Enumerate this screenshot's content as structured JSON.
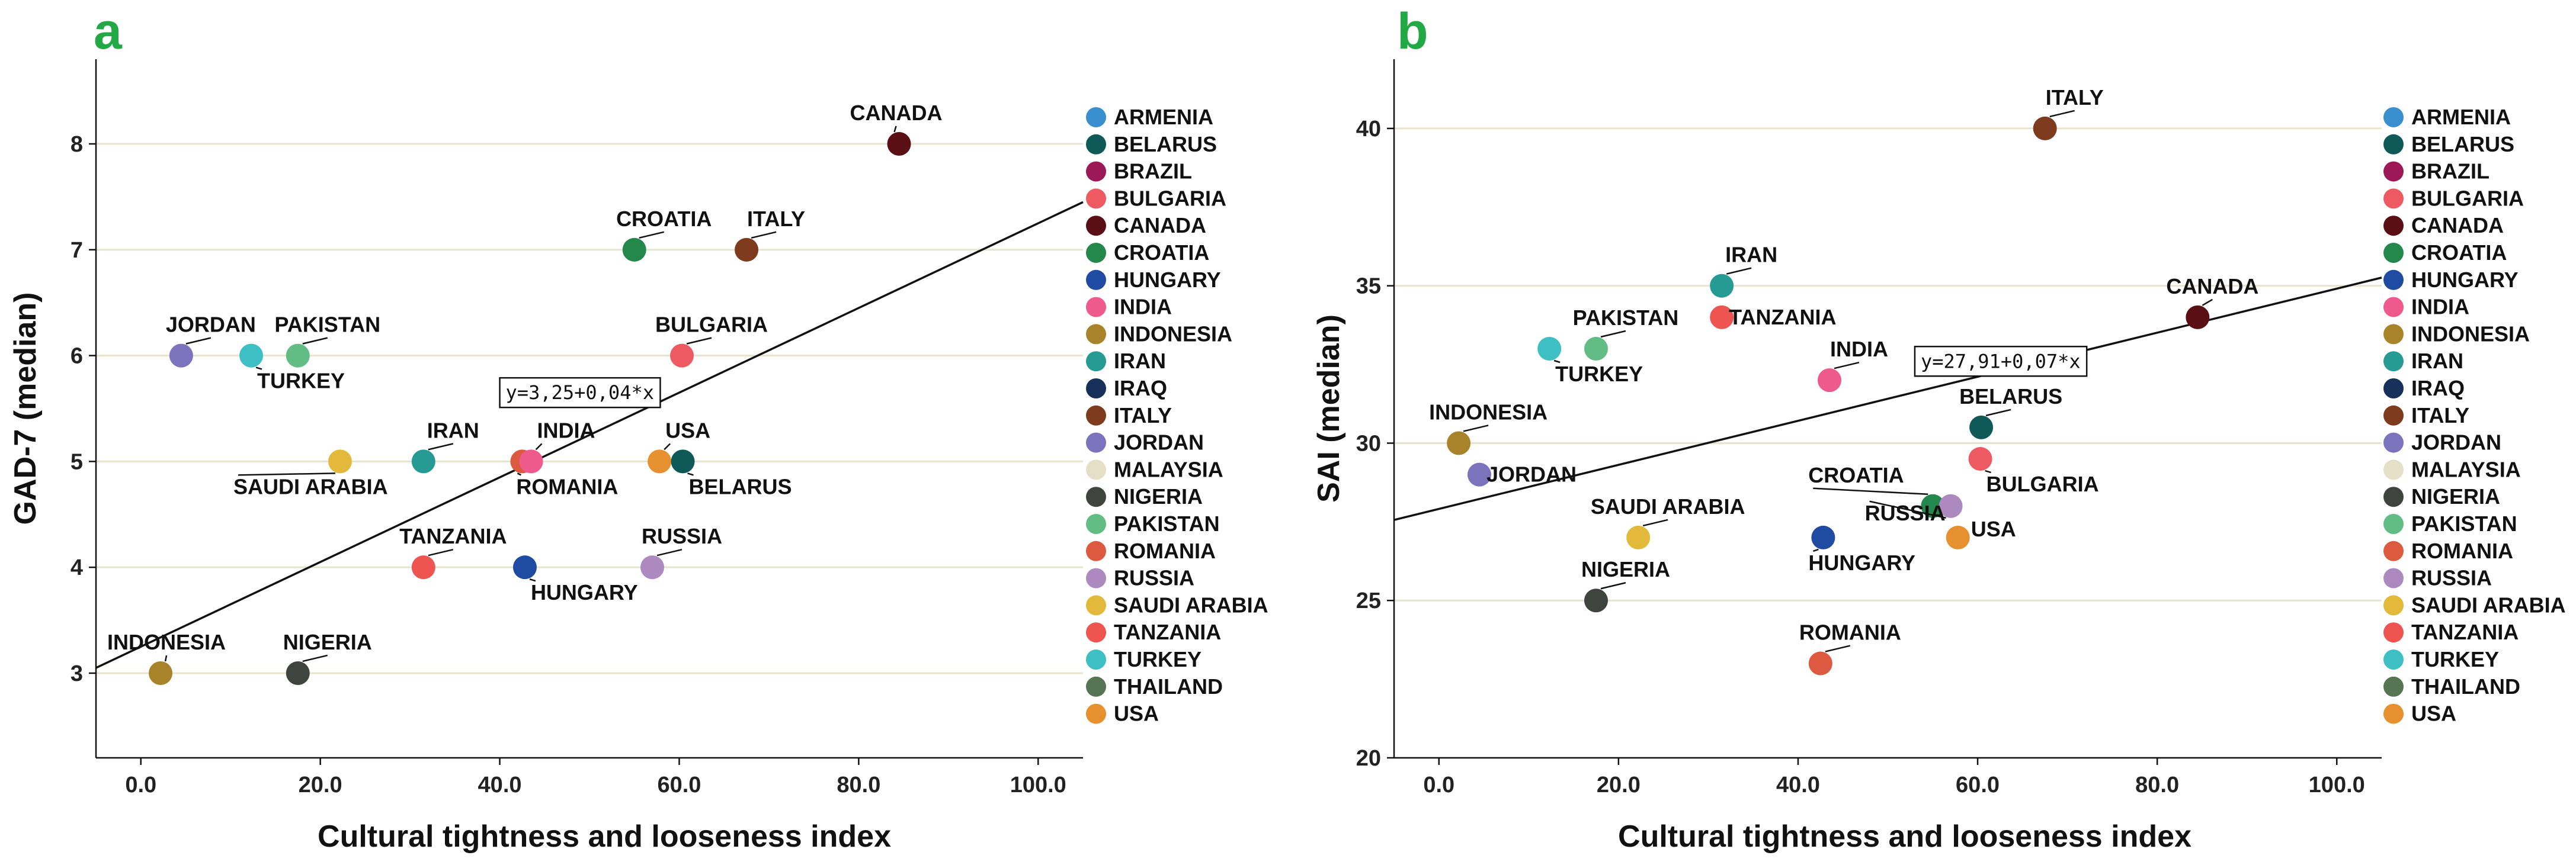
{
  "chart_data": [
    {
      "type": "scatter",
      "panel": "a",
      "xlabel": "Cultural tightness and looseness index",
      "ylabel": "GAD-7 (median)",
      "xlim": [
        -5,
        105
      ],
      "ylim": [
        2.2,
        8.8
      ],
      "xticks": [
        0,
        20,
        40,
        60,
        80,
        100
      ],
      "xtick_labels": [
        "0.0",
        "20.0",
        "40.0",
        "60.0",
        "80.0",
        "100.0"
      ],
      "yticks": [
        3,
        4,
        5,
        6,
        7,
        8
      ],
      "ytick_labels": [
        "3",
        "4",
        "5",
        "6",
        "7",
        "8"
      ],
      "gridlines": "horizontal",
      "fit": {
        "intercept": 3.25,
        "slope": 0.04,
        "label": "y=3,25+0,04*x",
        "label_at": [
          40,
          5.65
        ]
      },
      "points": [
        {
          "country": "CANADA",
          "x": 84.5,
          "y": 8
        },
        {
          "country": "CROATIA",
          "x": 55,
          "y": 7
        },
        {
          "country": "ITALY",
          "x": 67.5,
          "y": 7
        },
        {
          "country": "JORDAN",
          "x": 4.5,
          "y": 6
        },
        {
          "country": "TURKEY",
          "x": 12.3,
          "y": 6
        },
        {
          "country": "PAKISTAN",
          "x": 17.5,
          "y": 6
        },
        {
          "country": "BULGARIA",
          "x": 60.3,
          "y": 6
        },
        {
          "country": "SAUDI ARABIA",
          "x": 22.2,
          "y": 5
        },
        {
          "country": "IRAN",
          "x": 31.5,
          "y": 5
        },
        {
          "country": "ROMANIA",
          "x": 42.5,
          "y": 5
        },
        {
          "country": "INDIA",
          "x": 43.5,
          "y": 5
        },
        {
          "country": "USA",
          "x": 57.8,
          "y": 5
        },
        {
          "country": "BELARUS",
          "x": 60.4,
          "y": 5
        },
        {
          "country": "TANZANIA",
          "x": 31.5,
          "y": 4
        },
        {
          "country": "HUNGARY",
          "x": 42.8,
          "y": 4
        },
        {
          "country": "RUSSIA",
          "x": 57,
          "y": 4
        },
        {
          "country": "INDONESIA",
          "x": 2.2,
          "y": 3
        },
        {
          "country": "NIGERIA",
          "x": 17.5,
          "y": 3
        }
      ]
    },
    {
      "type": "scatter",
      "panel": "b",
      "xlabel": "Cultural tightness and looseness index",
      "ylabel": "SAI (median)",
      "xlim": [
        -5,
        105
      ],
      "ylim": [
        20,
        42.2
      ],
      "xticks": [
        0,
        20,
        40,
        60,
        80,
        100
      ],
      "xtick_labels": [
        "0.0",
        "20.0",
        "40.0",
        "60.0",
        "80.0",
        "100.0"
      ],
      "yticks": [
        20,
        25,
        30,
        35,
        40
      ],
      "ytick_labels": [
        "20",
        "25",
        "30",
        "35",
        "40"
      ],
      "gridlines": "horizontal",
      "fit": {
        "intercept": 27.91,
        "slope": 0.07,
        "label": "y=27,91+0,07*x",
        "label_at": [
          53,
          32.6
        ]
      },
      "points": [
        {
          "country": "ITALY",
          "x": 67.5,
          "y": 40
        },
        {
          "country": "IRAN",
          "x": 31.5,
          "y": 35
        },
        {
          "country": "TANZANIA",
          "x": 31.5,
          "y": 34
        },
        {
          "country": "CANADA",
          "x": 84.5,
          "y": 34
        },
        {
          "country": "TURKEY",
          "x": 12.3,
          "y": 33
        },
        {
          "country": "PAKISTAN",
          "x": 17.5,
          "y": 33
        },
        {
          "country": "INDIA",
          "x": 43.5,
          "y": 32
        },
        {
          "country": "INDONESIA",
          "x": 2.2,
          "y": 30
        },
        {
          "country": "JORDAN",
          "x": 4.5,
          "y": 29
        },
        {
          "country": "BELARUS",
          "x": 60.4,
          "y": 30.5
        },
        {
          "country": "BULGARIA",
          "x": 60.3,
          "y": 29.5
        },
        {
          "country": "CROATIA",
          "x": 55,
          "y": 28
        },
        {
          "country": "RUSSIA",
          "x": 57,
          "y": 28
        },
        {
          "country": "USA",
          "x": 57.8,
          "y": 27
        },
        {
          "country": "SAUDI ARABIA",
          "x": 22.2,
          "y": 27
        },
        {
          "country": "HUNGARY",
          "x": 42.8,
          "y": 27
        },
        {
          "country": "NIGERIA",
          "x": 17.5,
          "y": 25
        },
        {
          "country": "ROMANIA",
          "x": 42.5,
          "y": 23
        }
      ]
    }
  ],
  "legend": [
    {
      "country": "ARMENIA",
      "color": "#3a8fce"
    },
    {
      "country": "BELARUS",
      "color": "#0f5a58"
    },
    {
      "country": "BRAZIL",
      "color": "#9c1857"
    },
    {
      "country": "BULGARIA",
      "color": "#ee5a62"
    },
    {
      "country": "CANADA",
      "color": "#5a0f14"
    },
    {
      "country": "CROATIA",
      "color": "#23884a"
    },
    {
      "country": "HUNGARY",
      "color": "#1f4ba3"
    },
    {
      "country": "INDIA",
      "color": "#ee5a8c"
    },
    {
      "country": "INDONESIA",
      "color": "#a8832a"
    },
    {
      "country": "IRAN",
      "color": "#259b93"
    },
    {
      "country": "IRAQ",
      "color": "#16305a"
    },
    {
      "country": "ITALY",
      "color": "#7e3b1e"
    },
    {
      "country": "JORDAN",
      "color": "#7c73bd"
    },
    {
      "country": "MALAYSIA",
      "color": "#e4dfc6"
    },
    {
      "country": "NIGERIA",
      "color": "#40443f"
    },
    {
      "country": "PAKISTAN",
      "color": "#62bd84"
    },
    {
      "country": "ROMANIA",
      "color": "#dc5a3f"
    },
    {
      "country": "RUSSIA",
      "color": "#ac8ac0"
    },
    {
      "country": "SAUDI ARABIA",
      "color": "#e2b93a"
    },
    {
      "country": "TANZANIA",
      "color": "#ee5450"
    },
    {
      "country": "TURKEY",
      "color": "#3dbfc4"
    },
    {
      "country": "THAILAND",
      "color": "#567552"
    },
    {
      "country": "USA",
      "color": "#e6902f"
    }
  ],
  "colors": {
    "gridline": "#e6e4cf",
    "axis": "#111111",
    "panel_letter": "#22a845"
  }
}
